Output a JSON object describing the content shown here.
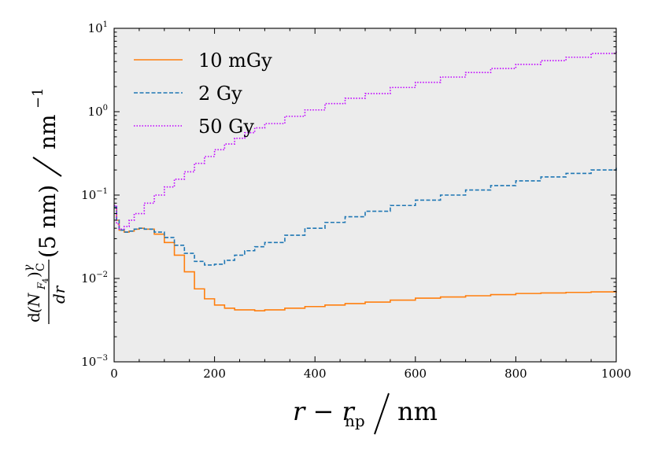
{
  "chart_data": {
    "type": "line",
    "xlabel": {
      "main": "r − r",
      "sub": "np",
      "unit": "nm"
    },
    "ylabel": {
      "num_d": "d",
      "num_n": "(N",
      "num_f": "F",
      "num_4": "4",
      "num_close": ")",
      "num_gamma": "γ",
      "num_c": "C",
      "den": "dr",
      "arg": "(5 nm)",
      "unit": "nm",
      "unit_exp": "−1"
    },
    "xlim": [
      0,
      1000
    ],
    "ylim": [
      0.001,
      10
    ],
    "yscale": "log",
    "grid": false,
    "legend_position": "top-left",
    "background": "#ececec",
    "x_ticks": [
      0,
      200,
      400,
      600,
      800,
      1000
    ],
    "x_tick_labels": [
      "0",
      "200",
      "400",
      "600",
      "800",
      "1000"
    ],
    "y_ticks": [
      {
        "value": 0.001,
        "base": "10",
        "exp": "−3"
      },
      {
        "value": 0.01,
        "base": "10",
        "exp": "−2"
      },
      {
        "value": 0.1,
        "base": "10",
        "exp": "−1"
      },
      {
        "value": 1,
        "base": "10",
        "exp": "0"
      },
      {
        "value": 10,
        "base": "10",
        "exp": "1"
      }
    ],
    "series": [
      {
        "name": "10 mGy",
        "color": "#ff7f0e",
        "style": "solid",
        "x": [
          0,
          5,
          10,
          20,
          30,
          40,
          50,
          60,
          80,
          100,
          120,
          140,
          160,
          180,
          200,
          220,
          240,
          260,
          280,
          300,
          340,
          380,
          420,
          460,
          500,
          550,
          600,
          650,
          700,
          750,
          800,
          850,
          900,
          950,
          1000
        ],
        "y": [
          0.072,
          0.05,
          0.038,
          0.036,
          0.037,
          0.039,
          0.04,
          0.039,
          0.034,
          0.027,
          0.019,
          0.012,
          0.0075,
          0.0057,
          0.0048,
          0.0044,
          0.0042,
          0.0042,
          0.0041,
          0.0042,
          0.0044,
          0.0046,
          0.0048,
          0.005,
          0.0052,
          0.0055,
          0.0058,
          0.006,
          0.0062,
          0.0064,
          0.0066,
          0.0067,
          0.0068,
          0.0069,
          0.007
        ]
      },
      {
        "name": "2 Gy",
        "color": "#1f77b4",
        "style": "dashed",
        "x": [
          0,
          5,
          10,
          20,
          30,
          40,
          50,
          60,
          80,
          100,
          120,
          140,
          160,
          180,
          200,
          220,
          240,
          260,
          280,
          300,
          340,
          380,
          420,
          460,
          500,
          550,
          600,
          650,
          700,
          750,
          800,
          850,
          900,
          950,
          1000
        ],
        "y": [
          0.072,
          0.05,
          0.038,
          0.036,
          0.037,
          0.039,
          0.04,
          0.039,
          0.036,
          0.031,
          0.025,
          0.02,
          0.016,
          0.0145,
          0.0148,
          0.0165,
          0.019,
          0.0215,
          0.024,
          0.027,
          0.033,
          0.04,
          0.047,
          0.055,
          0.064,
          0.075,
          0.087,
          0.1,
          0.115,
          0.13,
          0.148,
          0.165,
          0.182,
          0.2,
          0.222
        ]
      },
      {
        "name": "50 Gy",
        "color": "#bf00ff",
        "style": "dotted",
        "x": [
          0,
          5,
          10,
          20,
          30,
          40,
          60,
          80,
          100,
          120,
          140,
          160,
          180,
          200,
          220,
          240,
          260,
          280,
          300,
          340,
          380,
          420,
          460,
          500,
          550,
          600,
          650,
          700,
          750,
          800,
          850,
          900,
          950,
          1000
        ],
        "y": [
          0.075,
          0.045,
          0.039,
          0.042,
          0.05,
          0.06,
          0.08,
          0.1,
          0.125,
          0.155,
          0.19,
          0.24,
          0.29,
          0.35,
          0.41,
          0.48,
          0.56,
          0.64,
          0.72,
          0.88,
          1.05,
          1.25,
          1.45,
          1.65,
          1.95,
          2.25,
          2.6,
          2.95,
          3.3,
          3.7,
          4.1,
          4.5,
          5.0,
          5.5
        ]
      }
    ]
  }
}
